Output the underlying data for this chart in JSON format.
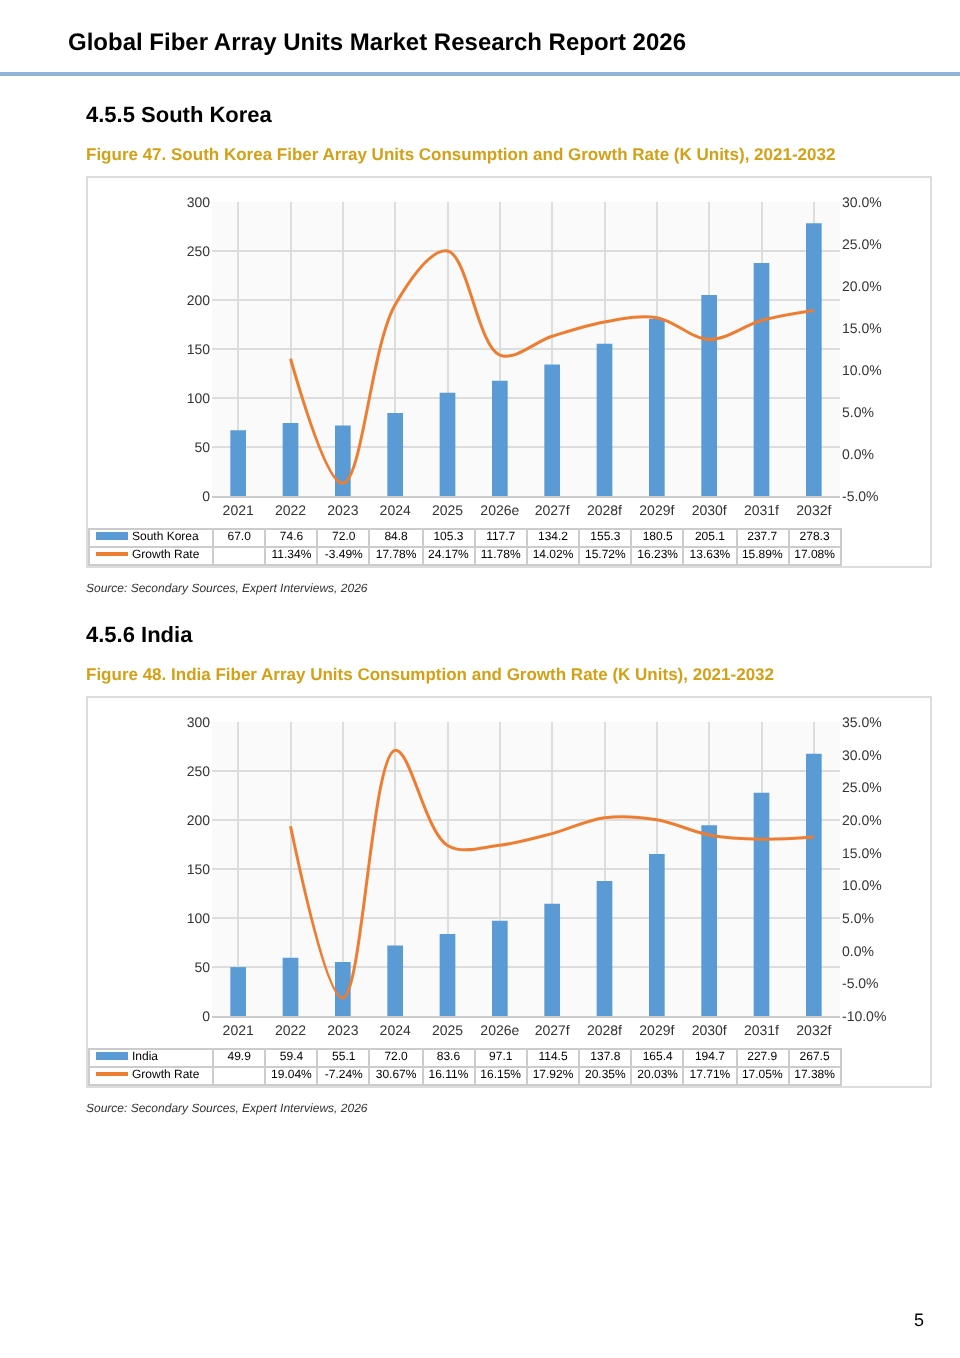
{
  "chart_data": [
    {
      "type": "bar",
      "title": "Figure 47.   South Korea Fiber Array Units Consumption and Growth Rate (K Units), 2021-2032",
      "annotations": [
        "Global Fiber Array Units Market Research Report 2026",
        "4.5.5  South Korea",
        "Source: Secondary Sources, Expert Interviews, 2026"
      ],
      "categories": [
        "2021",
        "2022",
        "2023",
        "2024",
        "2025",
        "2026e",
        "2027f",
        "2028f",
        "2029f",
        "2030f",
        "2031f",
        "2032f"
      ],
      "series": [
        {
          "name": "South Korea",
          "color": "#5b9bd5",
          "values": [
            67.0,
            74.6,
            72.0,
            84.8,
            105.3,
            117.7,
            134.2,
            155.3,
            180.5,
            205.1,
            237.7,
            278.3
          ],
          "value_labels": [
            "67.0",
            "74.6",
            "72.0",
            "84.8",
            "105.3",
            "117.7",
            "134.2",
            "155.3",
            "180.5",
            "205.1",
            "237.7",
            "278.3"
          ]
        },
        {
          "name": "Growth Rate",
          "type": "line",
          "axis": "y2",
          "color": "#ed7d31",
          "values": [
            null,
            11.34,
            -3.49,
            17.78,
            24.17,
            11.78,
            14.02,
            15.72,
            16.23,
            13.63,
            15.89,
            17.08
          ],
          "value_labels": [
            null,
            "11.34%",
            "-3.49%",
            "17.78%",
            "24.17%",
            "11.78%",
            "14.02%",
            "15.72%",
            "16.23%",
            "13.63%",
            "15.89%",
            "17.08%"
          ]
        }
      ],
      "ylim": [
        0,
        300
      ],
      "yticks": [
        0,
        50,
        100,
        150,
        200,
        250,
        300
      ],
      "y2lim": [
        -5,
        30
      ],
      "y2ticks": [
        {
          "value": -5,
          "label": "-5.0%"
        },
        {
          "value": 0,
          "label": "0.0%"
        },
        {
          "value": 5,
          "label": "5.0%"
        },
        {
          "value": 10,
          "label": "10.0%"
        },
        {
          "value": 15,
          "label": "15.0%"
        },
        {
          "value": 20,
          "label": "20.0%"
        },
        {
          "value": 25,
          "label": "25.0%"
        },
        {
          "value": 30,
          "label": "30.0%"
        }
      ],
      "grid": true,
      "legend": "bottom"
    },
    {
      "type": "bar",
      "title": "Figure 48.   India Fiber Array Units Consumption and Growth Rate (K Units), 2021-2032",
      "annotations": [
        "4.5.6  India",
        "Source: Secondary Sources, Expert Interviews, 2026",
        "5"
      ],
      "categories": [
        "2021",
        "2022",
        "2023",
        "2024",
        "2025",
        "2026e",
        "2027f",
        "2028f",
        "2029f",
        "2030f",
        "2031f",
        "2032f"
      ],
      "series": [
        {
          "name": "India",
          "color": "#5b9bd5",
          "values": [
            49.9,
            59.4,
            55.1,
            72.0,
            83.6,
            97.1,
            114.5,
            137.8,
            165.4,
            194.7,
            227.9,
            267.5
          ],
          "value_labels": [
            "49.9",
            "59.4",
            "55.1",
            "72.0",
            "83.6",
            "97.1",
            "114.5",
            "137.8",
            "165.4",
            "194.7",
            "227.9",
            "267.5"
          ]
        },
        {
          "name": "Growth Rate",
          "type": "line",
          "axis": "y2",
          "color": "#ed7d31",
          "values": [
            null,
            19.04,
            -7.24,
            30.67,
            16.11,
            16.15,
            17.92,
            20.35,
            20.03,
            17.71,
            17.05,
            17.38
          ],
          "value_labels": [
            null,
            "19.04%",
            "-7.24%",
            "30.67%",
            "16.11%",
            "16.15%",
            "17.92%",
            "20.35%",
            "20.03%",
            "17.71%",
            "17.05%",
            "17.38%"
          ]
        }
      ],
      "ylim": [
        0,
        300
      ],
      "yticks": [
        0,
        50,
        100,
        150,
        200,
        250,
        300
      ],
      "y2lim": [
        -10,
        35
      ],
      "y2ticks": [
        {
          "value": -10,
          "label": "-10.0%"
        },
        {
          "value": -5,
          "label": "-5.0%"
        },
        {
          "value": 0,
          "label": "0.0%"
        },
        {
          "value": 5,
          "label": "5.0%"
        },
        {
          "value": 10,
          "label": "10.0%"
        },
        {
          "value": 15,
          "label": "15.0%"
        },
        {
          "value": 20,
          "label": "20.0%"
        },
        {
          "value": 25,
          "label": "25.0%"
        },
        {
          "value": 30,
          "label": "30.0%"
        },
        {
          "value": 35,
          "label": "35.0%"
        }
      ],
      "grid": true,
      "legend": "bottom"
    }
  ]
}
